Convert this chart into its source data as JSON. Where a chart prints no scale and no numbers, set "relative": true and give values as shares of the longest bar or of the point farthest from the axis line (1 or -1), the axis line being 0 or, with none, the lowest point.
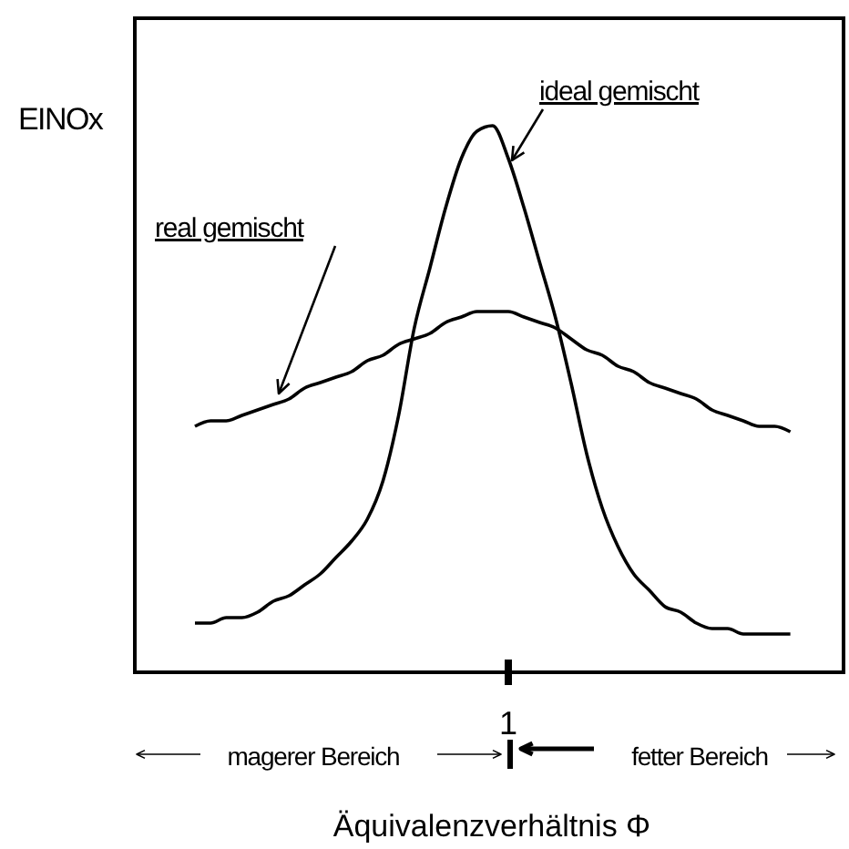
{
  "chart_data": {
    "type": "line",
    "relative": true,
    "ylabel": "EINOx",
    "xlabel": "Äquivalenzverhältnis Φ",
    "categories": [
      null,
      null,
      null,
      null,
      null,
      null,
      null,
      null,
      null,
      null,
      null,
      null,
      null,
      null,
      null,
      null,
      null,
      null,
      null,
      null,
      null,
      null,
      null,
      null,
      null,
      null,
      null,
      null,
      null,
      null,
      null,
      null,
      null,
      null,
      null,
      null,
      null,
      null,
      null
    ],
    "series": [
      {
        "name": "ideal gemischt",
        "color": "#000000",
        "values": [
          0.09,
          0.09,
          0.1,
          0.1,
          0.11,
          0.13,
          0.14,
          0.16,
          0.18,
          0.21,
          0.24,
          0.28,
          0.35,
          0.47,
          0.63,
          0.74,
          0.85,
          0.94,
          0.99,
          1,
          0.94,
          0.85,
          0.75,
          0.65,
          0.53,
          0.4,
          0.3,
          0.23,
          0.18,
          0.15,
          0.12,
          0.11,
          0.09,
          0.08,
          0.08,
          0.07,
          0.07,
          0.07,
          0.07
        ]
      },
      {
        "name": "real gemischt",
        "color": "#000000",
        "values": [
          0.45,
          0.46,
          0.46,
          0.47,
          0.48,
          0.49,
          0.5,
          0.52,
          0.53,
          0.54,
          0.55,
          0.57,
          0.58,
          0.6,
          0.61,
          0.62,
          0.64,
          0.65,
          0.66,
          0.66,
          0.66,
          0.65,
          0.64,
          0.63,
          0.61,
          0.59,
          0.58,
          0.56,
          0.55,
          0.53,
          0.52,
          0.51,
          0.5,
          0.48,
          0.47,
          0.46,
          0.45,
          0.45,
          0.44
        ]
      }
    ],
    "annotations": [
      "1",
      "magerer Bereich",
      "fetter Bereich"
    ]
  }
}
